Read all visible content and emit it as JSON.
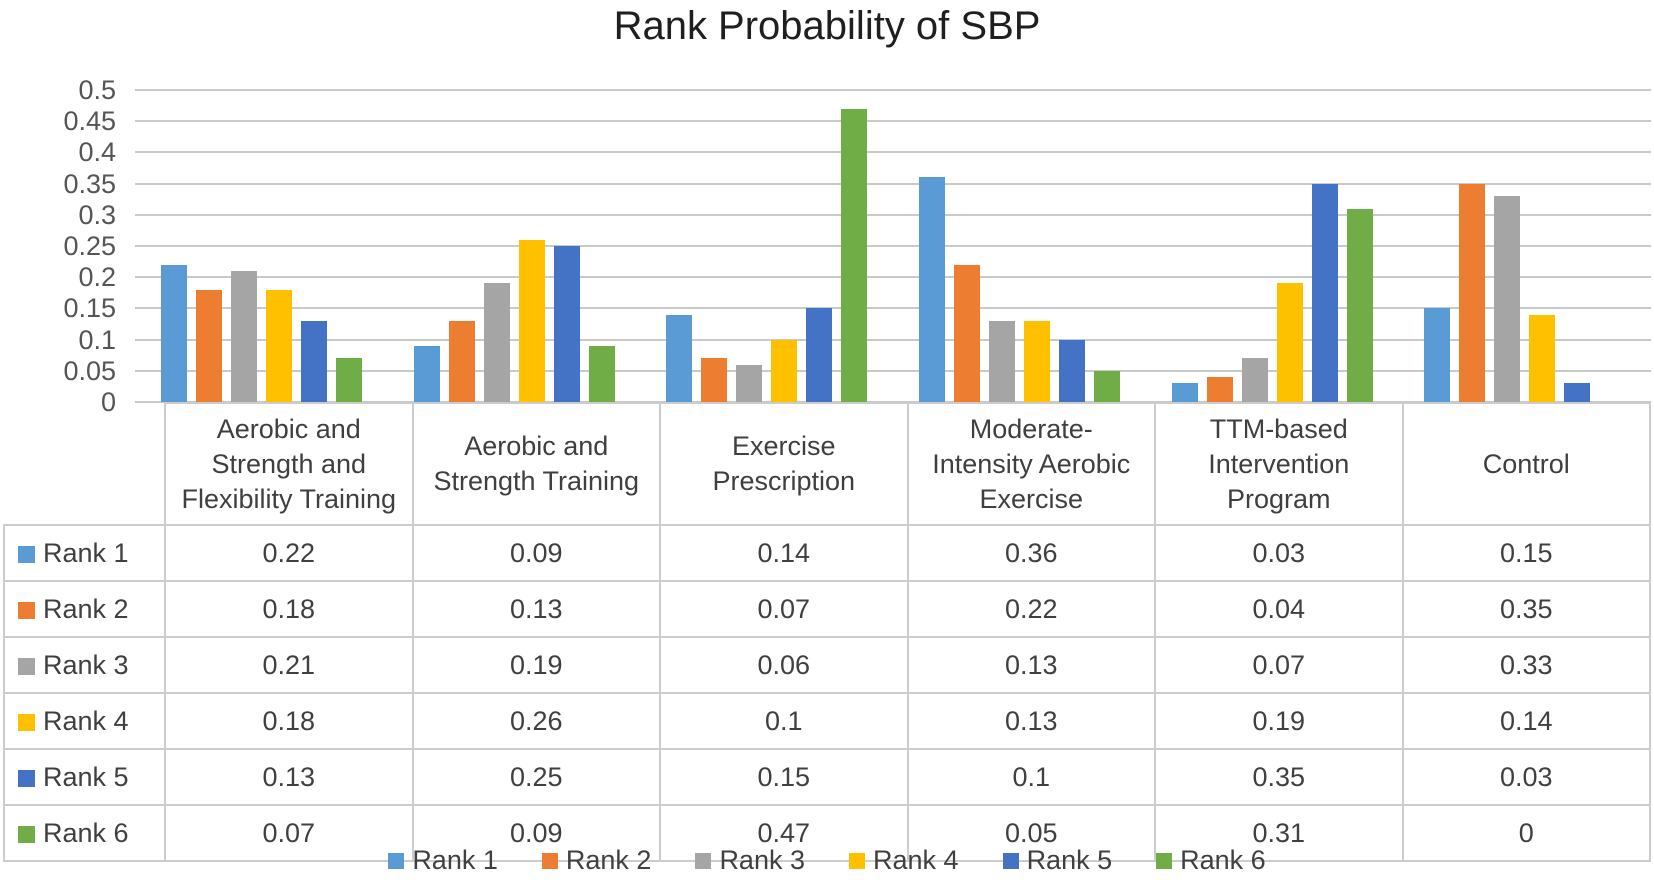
{
  "chart_data": {
    "type": "bar",
    "title": "Rank Probability of SBP",
    "xlabel": "",
    "ylabel": "",
    "ylim": [
      0,
      0.5
    ],
    "yticks": [
      "0.5",
      "0.45",
      "0.4",
      "0.35",
      "0.3",
      "0.25",
      "0.2",
      "0.15",
      "0.1",
      "0.05",
      "0"
    ],
    "grid": true,
    "legend_position": "bottom",
    "categories": [
      "Aerobic and Strength and Flexibility Training",
      "Aerobic and Strength Training",
      "Exercise Prescription",
      "Moderate-Intensity Aerobic Exercise",
      "TTM-based Intervention Program",
      "Control"
    ],
    "series": [
      {
        "name": "Rank 1",
        "color": "#5B9BD5",
        "values": [
          0.22,
          0.09,
          0.14,
          0.36,
          0.03,
          0.15
        ],
        "display": [
          "0.22",
          "0.09",
          "0.14",
          "0.36",
          "0.03",
          "0.15"
        ]
      },
      {
        "name": "Rank 2",
        "color": "#ED7D31",
        "values": [
          0.18,
          0.13,
          0.07,
          0.22,
          0.04,
          0.35
        ],
        "display": [
          "0.18",
          "0.13",
          "0.07",
          "0.22",
          "0.04",
          "0.35"
        ]
      },
      {
        "name": "Rank 3",
        "color": "#A5A5A5",
        "values": [
          0.21,
          0.19,
          0.06,
          0.13,
          0.07,
          0.33
        ],
        "display": [
          "0.21",
          "0.19",
          "0.06",
          "0.13",
          "0.07",
          "0.33"
        ]
      },
      {
        "name": "Rank 4",
        "color": "#FFC000",
        "values": [
          0.18,
          0.26,
          0.1,
          0.13,
          0.19,
          0.14
        ],
        "display": [
          "0.18",
          "0.26",
          "0.1",
          "0.13",
          "0.19",
          "0.14"
        ]
      },
      {
        "name": "Rank 5",
        "color": "#4472C4",
        "values": [
          0.13,
          0.25,
          0.15,
          0.1,
          0.35,
          0.03
        ],
        "display": [
          "0.13",
          "0.25",
          "0.15",
          "0.1",
          "0.35",
          "0.03"
        ]
      },
      {
        "name": "Rank 6",
        "color": "#70AD47",
        "values": [
          0.07,
          0.09,
          0.47,
          0.05,
          0.31,
          0
        ],
        "display": [
          "0.07",
          "0.09",
          "0.47",
          "0.05",
          "0.31",
          "0"
        ]
      }
    ]
  }
}
